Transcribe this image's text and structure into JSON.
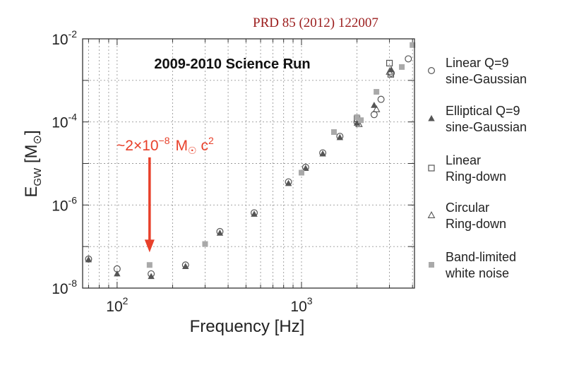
{
  "reference": "PRD 85 (2012) 122007",
  "chart_data": {
    "type": "scatter",
    "title": "2009-2010 Science Run",
    "xlabel": "Frequency [Hz]",
    "ylabel": "E_GW [M_sun]",
    "xscale": "log",
    "yscale": "log",
    "xlim": [
      65,
      4100
    ],
    "ylim": [
      1e-08,
      0.01
    ],
    "x_ticks": [
      {
        "value": 100,
        "base": "10",
        "exp": "2"
      },
      {
        "value": 1000,
        "base": "10",
        "exp": "3"
      }
    ],
    "y_ticks": [
      {
        "value": 1e-08,
        "base": "10",
        "exp": "-8"
      },
      {
        "value": 1e-06,
        "base": "10",
        "exp": "-6"
      },
      {
        "value": 0.0001,
        "base": "10",
        "exp": "-4"
      },
      {
        "value": 0.01,
        "base": "10",
        "exp": "-2"
      }
    ],
    "grid": true,
    "annotation": {
      "prefix": "~2×10",
      "exponent": "−8",
      "unit": "M",
      "unit_symbol": "☉",
      "suffix": " c",
      "suffix_exp": "2",
      "arrow_x": 150,
      "arrow_y_from": 1.4e-05,
      "arrow_y_to": 8.5e-08
    },
    "series": [
      {
        "name": "Linear Q=9 sine-Gaussian",
        "legend_lines": [
          "Linear Q=9",
          "sine-Gaussian"
        ],
        "marker": "circle",
        "x": [
          70,
          100,
          153,
          235,
          361,
          554,
          850,
          1053,
          1304,
          1615,
          2000,
          2477,
          2700,
          3067,
          3797
        ],
        "y": [
          5e-08,
          2.9e-08,
          2.2e-08,
          3.6e-08,
          2.3e-07,
          6.5e-07,
          3.6e-06,
          8.1e-06,
          1.8e-05,
          4.5e-05,
          0.0001,
          0.00015,
          0.00035,
          0.0015,
          0.0033
        ]
      },
      {
        "name": "Elliptical Q=9 sine-Gaussian",
        "legend_lines": [
          "Elliptical Q=9",
          "sine-Gaussian"
        ],
        "marker": "triangle-filled",
        "x": [
          70,
          100,
          153,
          235,
          361,
          554,
          850,
          1053,
          1304,
          1615,
          2000,
          2477,
          3067
        ],
        "y": [
          4.8e-08,
          2.2e-08,
          1.9e-08,
          3.3e-08,
          2.1e-07,
          6e-07,
          3.3e-06,
          7.6e-06,
          1.7e-05,
          4.2e-05,
          9.3e-05,
          0.00025,
          0.0018
        ]
      },
      {
        "name": "Linear Ring-down",
        "legend_lines": [
          "Linear",
          "Ring-down"
        ],
        "marker": "square-open",
        "x": [
          2000,
          3000,
          3050
        ],
        "y": [
          0.00012,
          0.0026,
          0.0014
        ]
      },
      {
        "name": "Circular Ring-down",
        "legend_lines": [
          "Circular",
          "Ring-down"
        ],
        "marker": "triangle-open",
        "x": [
          2050,
          2550,
          3000
        ],
        "y": [
          8.8e-05,
          0.0002,
          0.0016
        ]
      },
      {
        "name": "Band-limited white noise",
        "legend_lines": [
          "Band-limited",
          "white noise"
        ],
        "marker": "square-filled",
        "x": [
          150,
          300,
          1000,
          1500,
          2000,
          2100,
          2550,
          3500,
          4000
        ],
        "y": [
          3.6e-08,
          1.15e-07,
          6e-06,
          5.7e-05,
          0.00013,
          0.00011,
          0.00053,
          0.0021,
          0.0071
        ]
      }
    ]
  }
}
